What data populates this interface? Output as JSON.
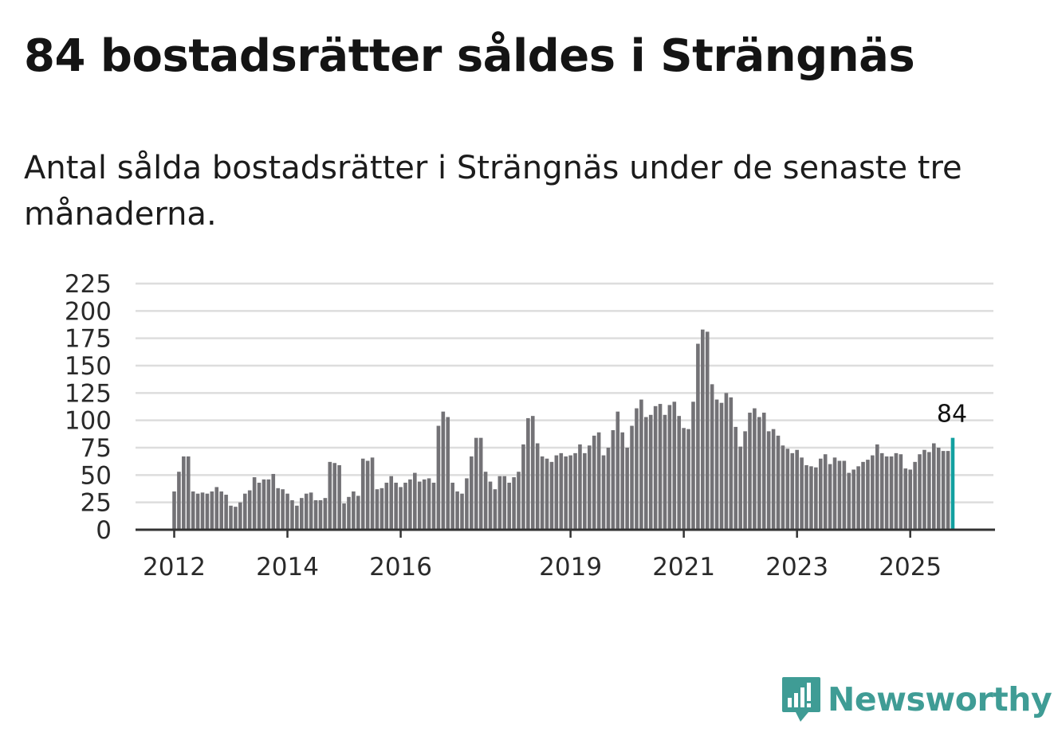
{
  "title": "84 bostadsrätter såldes i Strängnäs",
  "subtitle": "Antal sålda bostadsrätter i Strängnäs under de senaste tre månaderna.",
  "brand": {
    "name": "Newsworthy",
    "color": "#3f9c95",
    "icon": "newsworthy-logo-icon"
  },
  "colors": {
    "bar": "#737276",
    "highlight": "#12a0a0",
    "grid": "#dddddd",
    "axis": "#333333"
  },
  "chart_data": {
    "type": "bar",
    "title": "84 bostadsrätter såldes i Strängnäs",
    "xlabel": "",
    "ylabel": "",
    "ylim": [
      0,
      225
    ],
    "yticks": [
      0,
      25,
      50,
      75,
      100,
      125,
      150,
      175,
      200,
      225
    ],
    "xticks": [
      "2012",
      "2014",
      "2016",
      "2019",
      "2021",
      "2023",
      "2025"
    ],
    "xtick_indices": [
      0,
      24,
      48,
      84,
      108,
      132,
      156
    ],
    "start": "2012-01",
    "highlight_label": "84",
    "highlight_index": 165,
    "values": [
      35,
      53,
      67,
      67,
      35,
      33,
      34,
      33,
      35,
      39,
      35,
      32,
      22,
      21,
      25,
      33,
      36,
      48,
      43,
      46,
      46,
      51,
      38,
      37,
      33,
      27,
      22,
      29,
      33,
      34,
      27,
      27,
      29,
      62,
      61,
      59,
      24,
      30,
      35,
      31,
      65,
      63,
      66,
      37,
      38,
      43,
      49,
      43,
      39,
      43,
      46,
      52,
      44,
      46,
      47,
      43,
      95,
      108,
      103,
      43,
      35,
      33,
      47,
      67,
      84,
      84,
      53,
      44,
      37,
      49,
      49,
      43,
      48,
      53,
      78,
      102,
      104,
      79,
      67,
      65,
      62,
      68,
      70,
      67,
      68,
      70,
      78,
      70,
      77,
      86,
      89,
      68,
      75,
      91,
      108,
      89,
      75,
      95,
      111,
      119,
      103,
      105,
      113,
      115,
      105,
      114,
      117,
      104,
      93,
      92,
      117,
      170,
      183,
      181,
      133,
      119,
      116,
      125,
      121,
      94,
      76,
      90,
      107,
      111,
      103,
      107,
      90,
      92,
      86,
      77,
      74,
      70,
      73,
      66,
      59,
      58,
      57,
      65,
      69,
      60,
      66,
      63,
      63,
      52,
      55,
      58,
      62,
      64,
      68,
      78,
      70,
      67,
      67,
      70,
      69,
      56,
      55,
      62,
      69,
      73,
      71,
      79,
      75,
      72,
      72,
      84
    ]
  }
}
